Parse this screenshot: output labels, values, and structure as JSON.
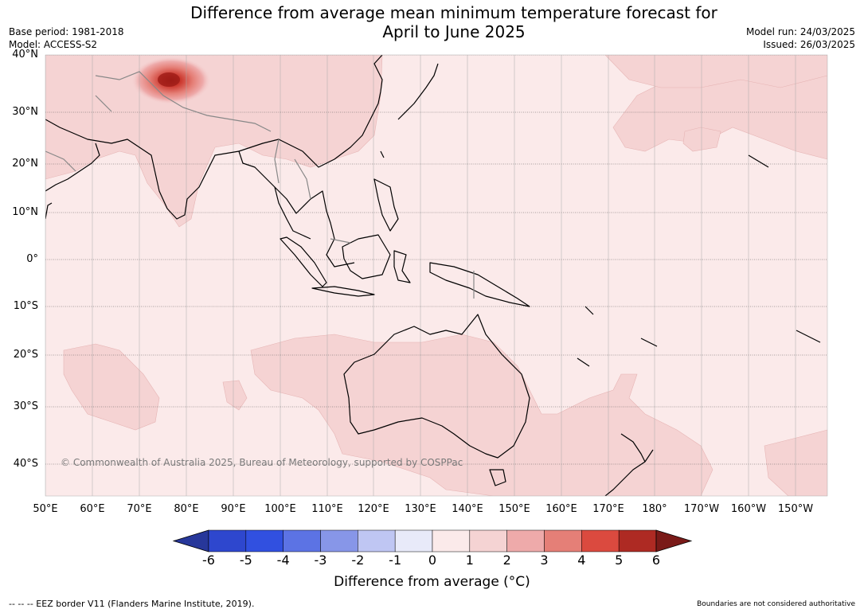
{
  "title_line1": "Difference from average mean minimum temperature forecast for",
  "title_line2": "April to June 2025",
  "meta": {
    "base_period": "Base period: 1981-2018",
    "model": "Model: ACCESS-S2",
    "model_run": "Model run: 24/03/2025",
    "issued": "Issued: 26/03/2025"
  },
  "map": {
    "region": "Indo-Pacific",
    "lon_range": [
      50,
      216
    ],
    "lat_range": [
      -46,
      40
    ],
    "lat_labels": [
      "40°N",
      "30°N",
      "20°N",
      "10°N",
      "0°",
      "10°S",
      "20°S",
      "30°S",
      "40°S"
    ],
    "lon_labels": [
      "50°E",
      "60°E",
      "70°E",
      "80°E",
      "90°E",
      "100°E",
      "110°E",
      "120°E",
      "130°E",
      "140°E",
      "150°E",
      "160°E",
      "170°E",
      "180°",
      "170°W",
      "160°W",
      "150°W"
    ],
    "ocean_color": "#fbeaea",
    "anomaly_1_2_color": "#f5d3d3",
    "hotspot_color": "#b3241c"
  },
  "copyright": "© Commonwealth of Australia 2025, Bureau of Meteorology, supported by COSPPac",
  "colorbar": {
    "ticks": [
      "-6",
      "-5",
      "-4",
      "-3",
      "-2",
      "-1",
      "0",
      "1",
      "2",
      "3",
      "4",
      "5",
      "6"
    ],
    "colors": [
      "#27379a",
      "#2e47ce",
      "#3150e0",
      "#5c73e4",
      "#8796e8",
      "#bfc6f3",
      "#e8eaf9",
      "#fbeaea",
      "#f5d3d3",
      "#eeaaaa",
      "#e57f77",
      "#db4a3f",
      "#ae2a23",
      "#7a1a18"
    ],
    "label": "Difference from average (°C)"
  },
  "footer": {
    "eez": "-- -- -- EEZ border V11 (Flanders Marine Institute, 2019).",
    "boundaries": "Boundaries are not considered authoritative"
  }
}
